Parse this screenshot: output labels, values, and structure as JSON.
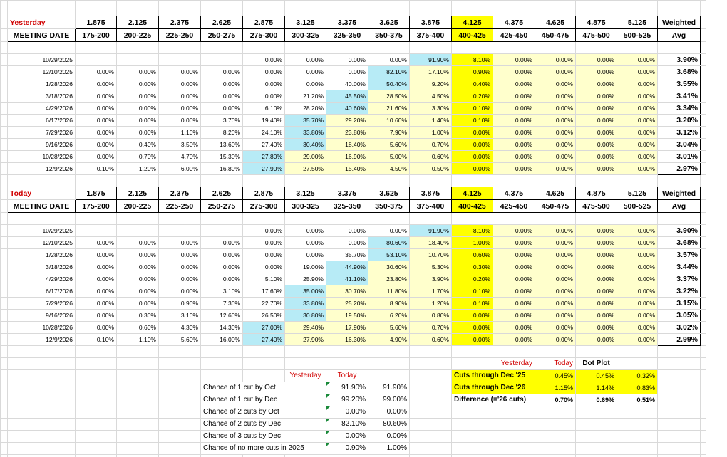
{
  "rate_headers": [
    "1.875",
    "2.125",
    "2.375",
    "2.625",
    "2.875",
    "3.125",
    "3.375",
    "3.625",
    "3.875",
    "4.125",
    "4.375",
    "4.625",
    "4.875",
    "5.125"
  ],
  "range_headers": [
    "175-200",
    "200-225",
    "225-250",
    "250-275",
    "275-300",
    "300-325",
    "325-350",
    "350-375",
    "375-400",
    "400-425",
    "425-450",
    "450-475",
    "475-500",
    "500-525"
  ],
  "current_rate_index": 9,
  "weighted_label": "Weighted",
  "avg_label": "Avg",
  "meeting_date_label": "MEETING DATE",
  "blocks": [
    {
      "title": "Yesterday",
      "rows": [
        {
          "date": "10/29/2025",
          "cells": [
            "",
            "",
            "",
            "",
            "0.00%",
            "0.00%",
            "0.00%",
            "0.00%",
            "91.90%",
            "8.10%",
            "0.00%",
            "0.00%",
            "0.00%",
            "0.00%"
          ],
          "avg": "3.90%",
          "max": 8
        },
        {
          "date": "12/10/2025",
          "cells": [
            "0.00%",
            "0.00%",
            "0.00%",
            "0.00%",
            "0.00%",
            "0.00%",
            "0.00%",
            "82.10%",
            "17.10%",
            "0.90%",
            "0.00%",
            "0.00%",
            "0.00%",
            "0.00%"
          ],
          "avg": "3.68%",
          "max": 7
        },
        {
          "date": "1/28/2026",
          "cells": [
            "0.00%",
            "0.00%",
            "0.00%",
            "0.00%",
            "0.00%",
            "0.00%",
            "40.00%",
            "50.40%",
            "9.20%",
            "0.40%",
            "0.00%",
            "0.00%",
            "0.00%",
            "0.00%"
          ],
          "avg": "3.55%",
          "max": 7
        },
        {
          "date": "3/18/2026",
          "cells": [
            "0.00%",
            "0.00%",
            "0.00%",
            "0.00%",
            "0.00%",
            "21.20%",
            "45.50%",
            "28.50%",
            "4.50%",
            "0.20%",
            "0.00%",
            "0.00%",
            "0.00%",
            "0.00%"
          ],
          "avg": "3.41%",
          "max": 6
        },
        {
          "date": "4/29/2026",
          "cells": [
            "0.00%",
            "0.00%",
            "0.00%",
            "0.00%",
            "6.10%",
            "28.20%",
            "40.60%",
            "21.60%",
            "3.30%",
            "0.10%",
            "0.00%",
            "0.00%",
            "0.00%",
            "0.00%"
          ],
          "avg": "3.34%",
          "max": 6
        },
        {
          "date": "6/17/2026",
          "cells": [
            "0.00%",
            "0.00%",
            "0.00%",
            "3.70%",
            "19.40%",
            "35.70%",
            "29.20%",
            "10.60%",
            "1.40%",
            "0.10%",
            "0.00%",
            "0.00%",
            "0.00%",
            "0.00%"
          ],
          "avg": "3.20%",
          "max": 5
        },
        {
          "date": "7/29/2026",
          "cells": [
            "0.00%",
            "0.00%",
            "1.10%",
            "8.20%",
            "24.10%",
            "33.80%",
            "23.80%",
            "7.90%",
            "1.00%",
            "0.00%",
            "0.00%",
            "0.00%",
            "0.00%",
            "0.00%"
          ],
          "avg": "3.12%",
          "max": 5
        },
        {
          "date": "9/16/2026",
          "cells": [
            "0.00%",
            "0.40%",
            "3.50%",
            "13.60%",
            "27.40%",
            "30.40%",
            "18.40%",
            "5.60%",
            "0.70%",
            "0.00%",
            "0.00%",
            "0.00%",
            "0.00%",
            "0.00%"
          ],
          "avg": "3.04%",
          "max": 5
        },
        {
          "date": "10/28/2026",
          "cells": [
            "0.00%",
            "0.70%",
            "4.70%",
            "15.30%",
            "27.80%",
            "29.00%",
            "16.90%",
            "5.00%",
            "0.60%",
            "0.00%",
            "0.00%",
            "0.00%",
            "0.00%",
            "0.00%"
          ],
          "avg": "3.01%",
          "max": 4
        },
        {
          "date": "12/9/2026",
          "cells": [
            "0.10%",
            "1.20%",
            "6.00%",
            "16.80%",
            "27.90%",
            "27.50%",
            "15.40%",
            "4.50%",
            "0.50%",
            "0.00%",
            "0.00%",
            "0.00%",
            "0.00%",
            "0.00%"
          ],
          "avg": "2.97%",
          "max": 4
        }
      ]
    },
    {
      "title": "Today",
      "rows": [
        {
          "date": "10/29/2025",
          "cells": [
            "",
            "",
            "",
            "",
            "0.00%",
            "0.00%",
            "0.00%",
            "0.00%",
            "91.90%",
            "8.10%",
            "0.00%",
            "0.00%",
            "0.00%",
            "0.00%"
          ],
          "avg": "3.90%",
          "max": 8
        },
        {
          "date": "12/10/2025",
          "cells": [
            "0.00%",
            "0.00%",
            "0.00%",
            "0.00%",
            "0.00%",
            "0.00%",
            "0.00%",
            "80.60%",
            "18.40%",
            "1.00%",
            "0.00%",
            "0.00%",
            "0.00%",
            "0.00%"
          ],
          "avg": "3.68%",
          "max": 7
        },
        {
          "date": "1/28/2026",
          "cells": [
            "0.00%",
            "0.00%",
            "0.00%",
            "0.00%",
            "0.00%",
            "0.00%",
            "35.70%",
            "53.10%",
            "10.70%",
            "0.60%",
            "0.00%",
            "0.00%",
            "0.00%",
            "0.00%"
          ],
          "avg": "3.57%",
          "max": 7
        },
        {
          "date": "3/18/2026",
          "cells": [
            "0.00%",
            "0.00%",
            "0.00%",
            "0.00%",
            "0.00%",
            "19.00%",
            "44.90%",
            "30.60%",
            "5.30%",
            "0.30%",
            "0.00%",
            "0.00%",
            "0.00%",
            "0.00%"
          ],
          "avg": "3.44%",
          "max": 6
        },
        {
          "date": "4/29/2026",
          "cells": [
            "0.00%",
            "0.00%",
            "0.00%",
            "0.00%",
            "5.10%",
            "25.90%",
            "41.10%",
            "23.80%",
            "3.90%",
            "0.20%",
            "0.00%",
            "0.00%",
            "0.00%",
            "0.00%"
          ],
          "avg": "3.37%",
          "max": 6
        },
        {
          "date": "6/17/2026",
          "cells": [
            "0.00%",
            "0.00%",
            "0.00%",
            "3.10%",
            "17.60%",
            "35.00%",
            "30.70%",
            "11.80%",
            "1.70%",
            "0.10%",
            "0.00%",
            "0.00%",
            "0.00%",
            "0.00%"
          ],
          "avg": "3.22%",
          "max": 5
        },
        {
          "date": "7/29/2026",
          "cells": [
            "0.00%",
            "0.00%",
            "0.90%",
            "7.30%",
            "22.70%",
            "33.80%",
            "25.20%",
            "8.90%",
            "1.20%",
            "0.10%",
            "0.00%",
            "0.00%",
            "0.00%",
            "0.00%"
          ],
          "avg": "3.15%",
          "max": 5
        },
        {
          "date": "9/16/2026",
          "cells": [
            "0.00%",
            "0.30%",
            "3.10%",
            "12.60%",
            "26.50%",
            "30.80%",
            "19.50%",
            "6.20%",
            "0.80%",
            "0.00%",
            "0.00%",
            "0.00%",
            "0.00%",
            "0.00%"
          ],
          "avg": "3.05%",
          "max": 5
        },
        {
          "date": "10/28/2026",
          "cells": [
            "0.00%",
            "0.60%",
            "4.30%",
            "14.30%",
            "27.00%",
            "29.40%",
            "17.90%",
            "5.60%",
            "0.70%",
            "0.00%",
            "0.00%",
            "0.00%",
            "0.00%",
            "0.00%"
          ],
          "avg": "3.02%",
          "max": 4
        },
        {
          "date": "12/9/2026",
          "cells": [
            "0.10%",
            "1.10%",
            "5.60%",
            "16.00%",
            "27.40%",
            "27.90%",
            "16.30%",
            "4.90%",
            "0.60%",
            "0.00%",
            "0.00%",
            "0.00%",
            "0.00%",
            "0.00%"
          ],
          "avg": "2.99%",
          "max": 4
        }
      ]
    }
  ],
  "chances": {
    "yesterday_label": "Yesterday",
    "today_label": "Today",
    "rows": [
      {
        "label": "Chance of 1 cut by Oct",
        "yesterday": "91.90%",
        "today": "91.90%"
      },
      {
        "label": "Chance of 1 cut by Dec",
        "yesterday": "99.20%",
        "today": "99.00%"
      },
      {
        "label": "Chance of 2 cuts by Oct",
        "yesterday": "0.00%",
        "today": "0.00%"
      },
      {
        "label": "Chance of 2 cuts by Dec",
        "yesterday": "82.10%",
        "today": "80.60%"
      },
      {
        "label": "Chance of 3 cuts by Dec",
        "yesterday": "0.00%",
        "today": "0.00%"
      },
      {
        "label": "Chance of no more cuts in 2025",
        "yesterday": "0.90%",
        "today": "1.00%"
      }
    ]
  },
  "cuts": {
    "yesterday_label": "Yesterday",
    "today_label": "Today",
    "dotplot_label": "Dot Plot",
    "rows": [
      {
        "label": "Cuts through Dec '25",
        "yesterday": "0.45%",
        "today": "0.45%",
        "dotplot": "0.32%",
        "highlight": true
      },
      {
        "label": "Cuts through Dec '26",
        "yesterday": "1.15%",
        "today": "1.14%",
        "dotplot": "0.83%",
        "highlight": true
      },
      {
        "label": "Difference (='26 cuts)",
        "yesterday": "0.70%",
        "today": "0.69%",
        "dotplot": "0.51%",
        "highlight": false
      }
    ]
  },
  "colors": {
    "current_rate_yellow": "#ffff00",
    "light_yellow": "#ffffcc",
    "light_blue_max": "#b7ebf6",
    "title_red": "#d00000",
    "gridline": "#d9d9d9"
  }
}
